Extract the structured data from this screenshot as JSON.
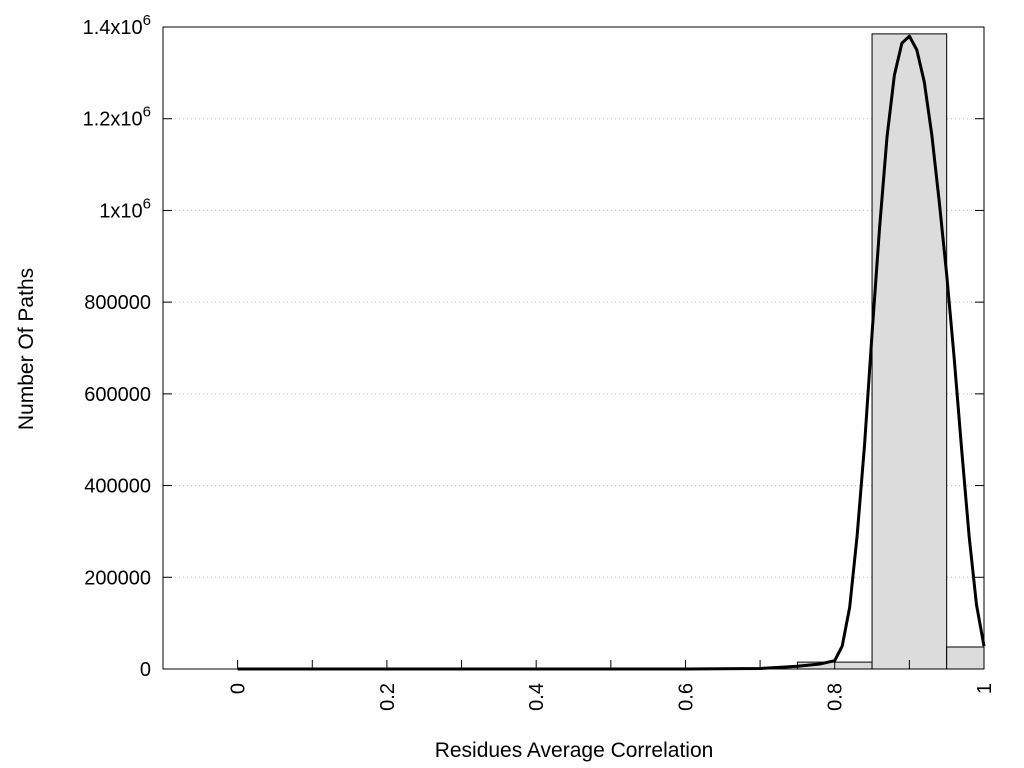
{
  "chart_data": {
    "type": "bar",
    "title": "",
    "xlabel": "Residues Average Correlation",
    "ylabel": "Number Of Paths",
    "xlim": [
      -0.1,
      1.0
    ],
    "ylim": [
      0,
      1400000
    ],
    "grid": "horizontal-dotted",
    "y_ticks": [
      {
        "value": 0,
        "label": "0"
      },
      {
        "value": 200000,
        "label": "200000"
      },
      {
        "value": 400000,
        "label": "400000"
      },
      {
        "value": 600000,
        "label": "600000"
      },
      {
        "value": 800000,
        "label": "800000"
      },
      {
        "value": 1000000,
        "label": "1x10",
        "exp": "6"
      },
      {
        "value": 1200000,
        "label": "1.2x10",
        "exp": "6"
      },
      {
        "value": 1400000,
        "label": "1.4x10",
        "exp": "6"
      }
    ],
    "x_ticks": [
      {
        "value": 0,
        "label": "0"
      },
      {
        "value": 0.2,
        "label": "0.2"
      },
      {
        "value": 0.4,
        "label": "0.4"
      },
      {
        "value": 0.6,
        "label": "0.6"
      },
      {
        "value": 0.8,
        "label": "0.8"
      },
      {
        "value": 1.0,
        "label": "1"
      }
    ],
    "x_minor_ticks": [
      0.1,
      0.3,
      0.5,
      0.7,
      0.9
    ],
    "bars": [
      {
        "x0": 0.75,
        "x1": 0.85,
        "value": 15000
      },
      {
        "x0": 0.85,
        "x1": 0.95,
        "value": 1385000
      },
      {
        "x0": 0.95,
        "x1": 1.0,
        "value": 48000
      }
    ],
    "curve": [
      [
        0.0,
        0
      ],
      [
        0.6,
        0
      ],
      [
        0.7,
        1000
      ],
      [
        0.75,
        6000
      ],
      [
        0.78,
        11000
      ],
      [
        0.8,
        18000
      ],
      [
        0.81,
        50000
      ],
      [
        0.82,
        135000
      ],
      [
        0.83,
        290000
      ],
      [
        0.84,
        490000
      ],
      [
        0.85,
        730000
      ],
      [
        0.86,
        960000
      ],
      [
        0.87,
        1160000
      ],
      [
        0.88,
        1295000
      ],
      [
        0.89,
        1365000
      ],
      [
        0.9,
        1380000
      ],
      [
        0.91,
        1350000
      ],
      [
        0.92,
        1280000
      ],
      [
        0.93,
        1165000
      ],
      [
        0.94,
        1020000
      ],
      [
        0.95,
        860000
      ],
      [
        0.96,
        680000
      ],
      [
        0.97,
        480000
      ],
      [
        0.98,
        290000
      ],
      [
        0.99,
        140000
      ],
      [
        1.0,
        50000
      ]
    ],
    "colors": {
      "bar_fill": "#dcdcdc",
      "bar_stroke": "#000000",
      "curve": "#000000",
      "grid": "#bdbdbd"
    }
  }
}
